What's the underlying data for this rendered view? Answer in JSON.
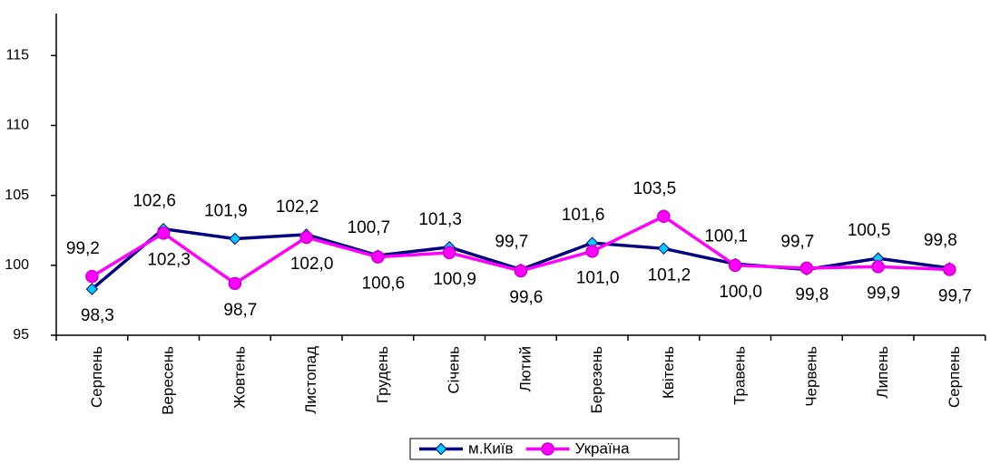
{
  "chart_data": {
    "type": "line",
    "categories": [
      "Серпень",
      "Вересень",
      "Жовтень",
      "Листопад",
      "Грудень",
      "Січень",
      "Лютий",
      "Березень",
      "Квітень",
      "Травень",
      "Червень",
      "Липень",
      "Серпень"
    ],
    "series": [
      {
        "name": "м.Київ",
        "color": "#000080",
        "marker_color": "#00ccff",
        "marker": "diamond",
        "values": [
          98.3,
          102.6,
          101.9,
          102.2,
          100.7,
          101.3,
          99.7,
          101.6,
          101.2,
          100.1,
          99.7,
          100.5,
          99.8
        ],
        "value_labels": [
          "98,3",
          "102,6",
          "101,9",
          "102,2",
          "100,7",
          "101,3",
          "99,7",
          "101,6",
          "101,2",
          "100,1",
          "99,7",
          "100,5",
          "99,8"
        ]
      },
      {
        "name": "Україна",
        "color": "#ff00ff",
        "marker_color": "#cc00cc",
        "marker": "circle",
        "values": [
          99.2,
          102.3,
          98.7,
          102.0,
          100.6,
          100.9,
          99.6,
          101.0,
          103.5,
          100.0,
          99.8,
          99.9,
          99.7
        ],
        "value_labels": [
          "99,2",
          "102,3",
          "98,7",
          "102,0",
          "100,6",
          "100,9",
          "99,6",
          "101,0",
          "103,5",
          "100,0",
          "99,8",
          "99,9",
          "99,7"
        ]
      }
    ],
    "ylim": [
      95,
      118
    ],
    "yticks": [
      95,
      100,
      105,
      110,
      115
    ],
    "grid": false,
    "legend": "bottom"
  }
}
